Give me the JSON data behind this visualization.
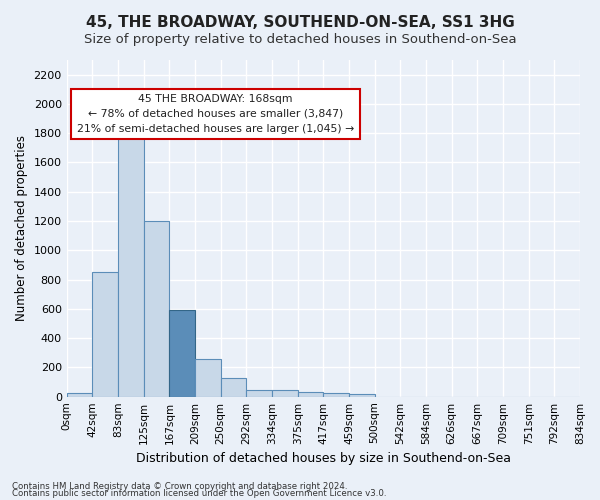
{
  "title": "45, THE BROADWAY, SOUTHEND-ON-SEA, SS1 3HG",
  "subtitle": "Size of property relative to detached houses in Southend-on-Sea",
  "xlabel": "Distribution of detached houses by size in Southend-on-Sea",
  "ylabel": "Number of detached properties",
  "footnote1": "Contains HM Land Registry data © Crown copyright and database right 2024.",
  "footnote2": "Contains public sector information licensed under the Open Government Licence v3.0.",
  "bin_labels": [
    "0sqm",
    "42sqm",
    "83sqm",
    "125sqm",
    "167sqm",
    "209sqm",
    "250sqm",
    "292sqm",
    "334sqm",
    "375sqm",
    "417sqm",
    "459sqm",
    "500sqm",
    "542sqm",
    "584sqm",
    "626sqm",
    "667sqm",
    "709sqm",
    "751sqm",
    "792sqm",
    "834sqm"
  ],
  "bar_values": [
    25,
    850,
    1800,
    1200,
    590,
    255,
    130,
    45,
    45,
    30,
    25,
    15,
    0,
    0,
    0,
    0,
    0,
    0,
    0,
    0
  ],
  "bar_color": "#c8d8e8",
  "bar_edge_color": "#5b8db8",
  "highlight_bar_index": 4,
  "highlight_bar_color": "#5b8db8",
  "highlight_bar_edge_color": "#336688",
  "annotation_title": "45 THE BROADWAY: 168sqm",
  "annotation_line1": "← 78% of detached houses are smaller (3,847)",
  "annotation_line2": "21% of semi-detached houses are larger (1,045) →",
  "annotation_box_color": "#ffffff",
  "annotation_box_edge": "#cc0000",
  "ylim": [
    0,
    2300
  ],
  "yticks": [
    0,
    200,
    400,
    600,
    800,
    1000,
    1200,
    1400,
    1600,
    1800,
    2000,
    2200
  ],
  "background_color": "#eaf0f8",
  "plot_bg_color": "#eaf0f8",
  "grid_color": "#ffffff",
  "title_fontsize": 11,
  "subtitle_fontsize": 9.5
}
